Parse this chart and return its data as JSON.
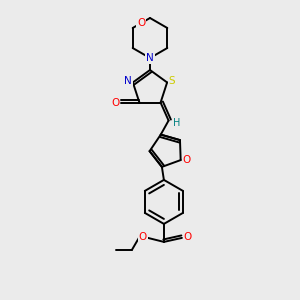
{
  "background_color": "#ebebeb",
  "bond_color": "#000000",
  "atom_colors": {
    "O": "#ff0000",
    "N": "#0000cc",
    "S": "#cccc00",
    "H": "#008080",
    "C": "#000000"
  },
  "figsize": [
    3.0,
    3.0
  ],
  "dpi": 100,
  "lw": 1.4
}
